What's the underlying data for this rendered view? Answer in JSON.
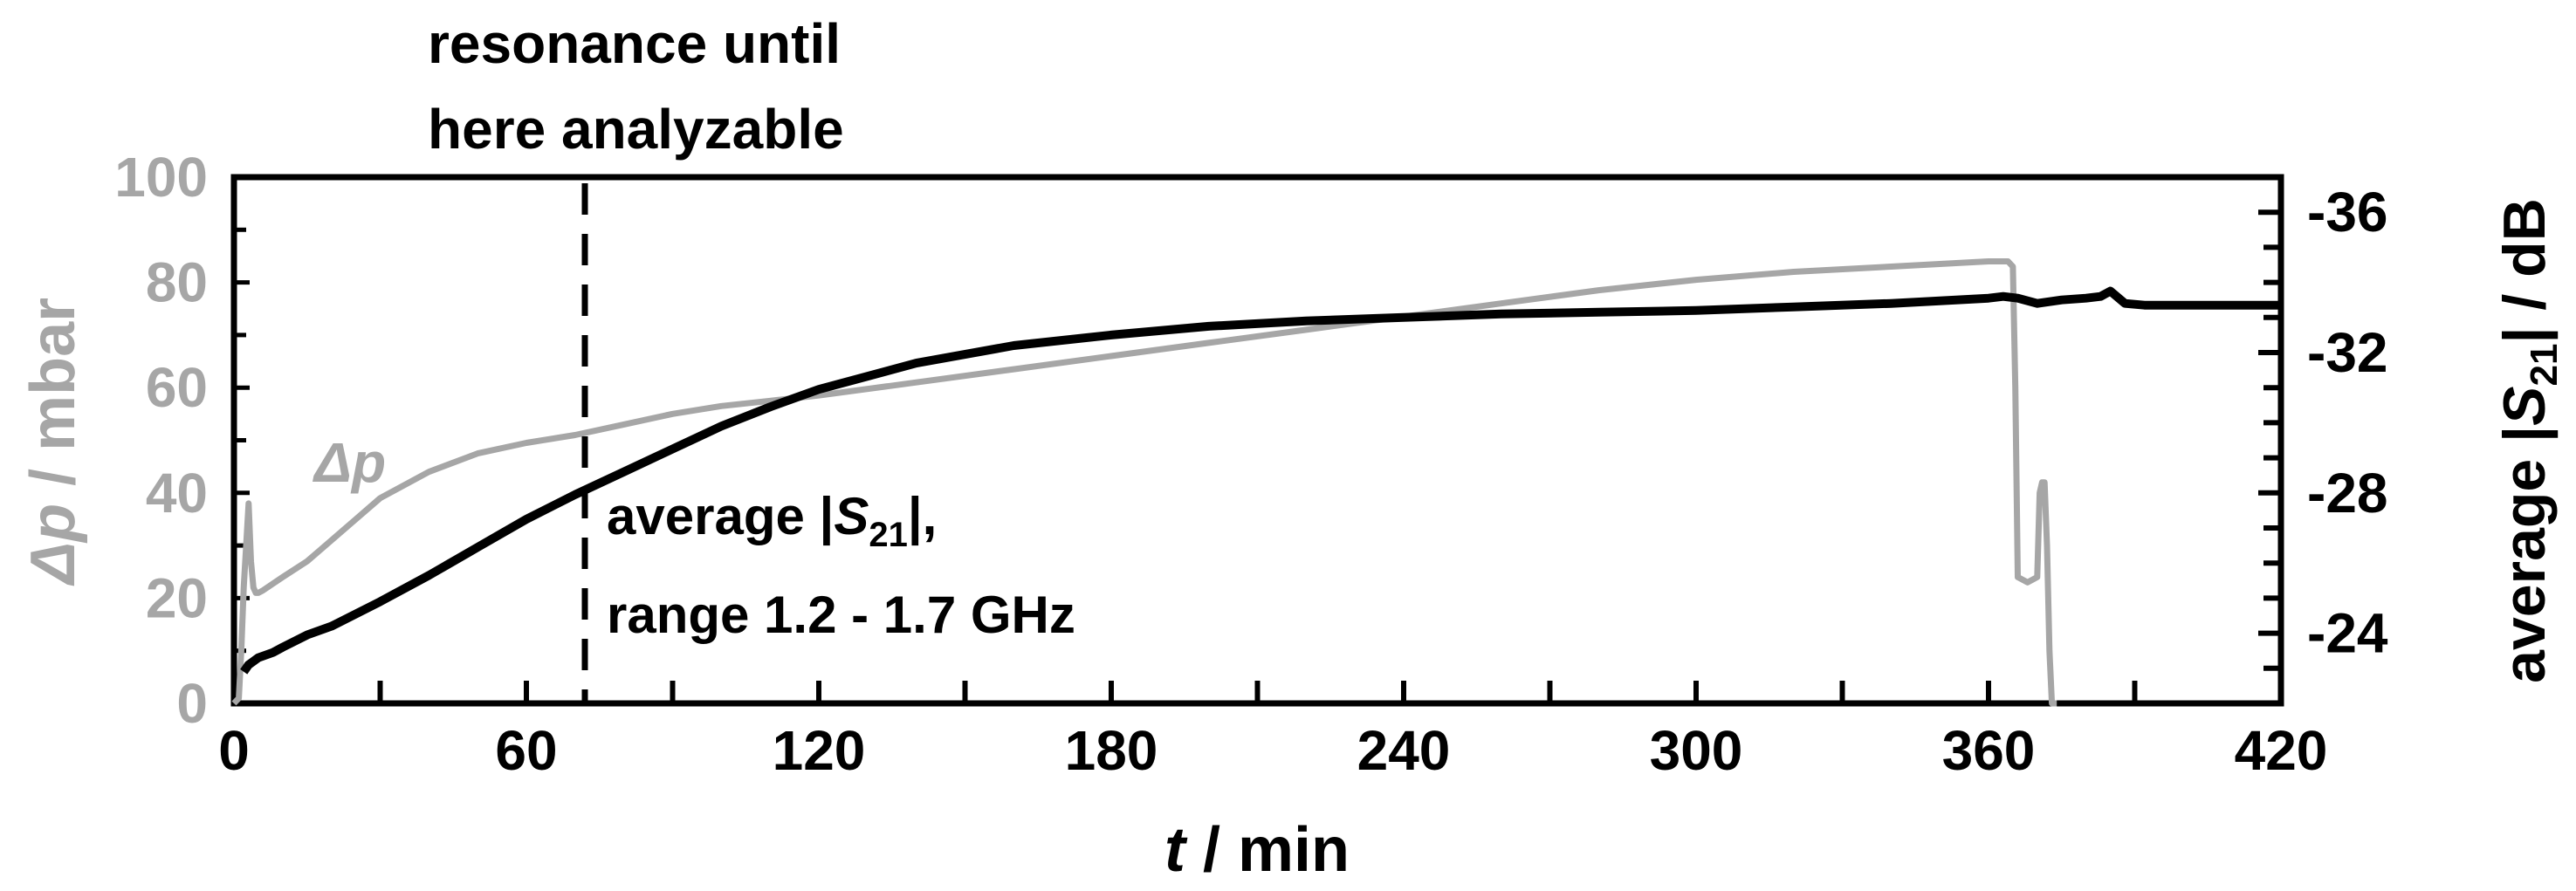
{
  "chart_data": {
    "type": "line",
    "x": {
      "label_var": "t",
      "label_unit": " / min",
      "lim": [
        0,
        420
      ],
      "ticks": [
        0,
        60,
        120,
        180,
        240,
        300,
        360,
        420
      ],
      "minor_ticks": [
        30,
        90,
        150,
        210,
        270,
        330,
        390
      ]
    },
    "y_left": {
      "label_var": "Δp",
      "label_unit": " / mbar",
      "lim": [
        0,
        100
      ],
      "ticks": [
        0,
        20,
        40,
        60,
        80,
        100
      ],
      "minor_ticks": [
        10,
        30,
        50,
        70,
        90
      ],
      "color": "#a6a6a6"
    },
    "y_right": {
      "label_pre": "average |",
      "label_var": "S",
      "label_sub": "21",
      "label_post": "| / dB",
      "lim": [
        -22,
        -37
      ],
      "ticks": [
        -24,
        -28,
        -32,
        -36
      ],
      "tick_labels": [
        "-24",
        "-28",
        "-32",
        "-36"
      ],
      "minor_ticks": [
        -23,
        -25,
        -26,
        -27,
        -29,
        -30,
        -31,
        -33,
        -34,
        -35
      ],
      "color": "#000000"
    },
    "series": [
      {
        "axis": "left",
        "color": "#a6a6a6",
        "x": [
          0,
          1,
          1.5,
          2,
          2.5,
          3,
          3.5,
          4,
          4.5,
          5,
          6,
          10,
          15,
          20,
          25,
          30,
          40,
          50,
          60,
          70,
          80,
          90,
          100,
          110,
          120,
          140,
          160,
          180,
          200,
          220,
          240,
          260,
          280,
          300,
          320,
          340,
          350,
          360,
          364,
          365,
          365.5,
          366,
          368,
          370,
          370.5,
          371,
          371.5,
          372,
          372.5,
          373,
          374
        ],
        "values": [
          0,
          1,
          10,
          22,
          30,
          38,
          27,
          22,
          21,
          21,
          21.5,
          24,
          27,
          31,
          35,
          39,
          44,
          47.5,
          49.5,
          51,
          53,
          55,
          56.5,
          57.5,
          58.5,
          61,
          63.5,
          66,
          68.5,
          71,
          73.5,
          76,
          78.5,
          80.5,
          82,
          83,
          83.5,
          84,
          84,
          83,
          60,
          24,
          23,
          24,
          40,
          42,
          42,
          30,
          10,
          0,
          0
        ]
      },
      {
        "axis": "right",
        "color": "#000000",
        "x": [
          2,
          3,
          4,
          5,
          6,
          8,
          10,
          15,
          20,
          30,
          40,
          50,
          60,
          70,
          80,
          90,
          100,
          110,
          120,
          140,
          160,
          180,
          200,
          220,
          240,
          260,
          280,
          300,
          320,
          340,
          360,
          363,
          366,
          370,
          375,
          380,
          383,
          385,
          388,
          392,
          400,
          420
        ],
        "values": [
          -22.9,
          -23.1,
          -23.2,
          -23.3,
          -23.35,
          -23.45,
          -23.6,
          -23.95,
          -24.2,
          -24.9,
          -25.65,
          -26.45,
          -27.25,
          -27.95,
          -28.6,
          -29.25,
          -29.9,
          -30.45,
          -30.95,
          -31.7,
          -32.2,
          -32.5,
          -32.75,
          -32.9,
          -33.0,
          -33.1,
          -33.15,
          -33.2,
          -33.3,
          -33.4,
          -33.55,
          -33.6,
          -33.55,
          -33.4,
          -33.5,
          -33.55,
          -33.6,
          -33.75,
          -33.4,
          -33.35,
          -33.35,
          -33.35
        ]
      }
    ],
    "annotations": {
      "vline_x": 72,
      "top_line1": "resonance until",
      "top_line2": "here analyzable",
      "dp_label": "Δp",
      "s21_pre": "average |",
      "s21_var": "S",
      "s21_sub": "21",
      "s21_post": "|,",
      "range_text": "range 1.2 - 1.7 GHz"
    }
  }
}
